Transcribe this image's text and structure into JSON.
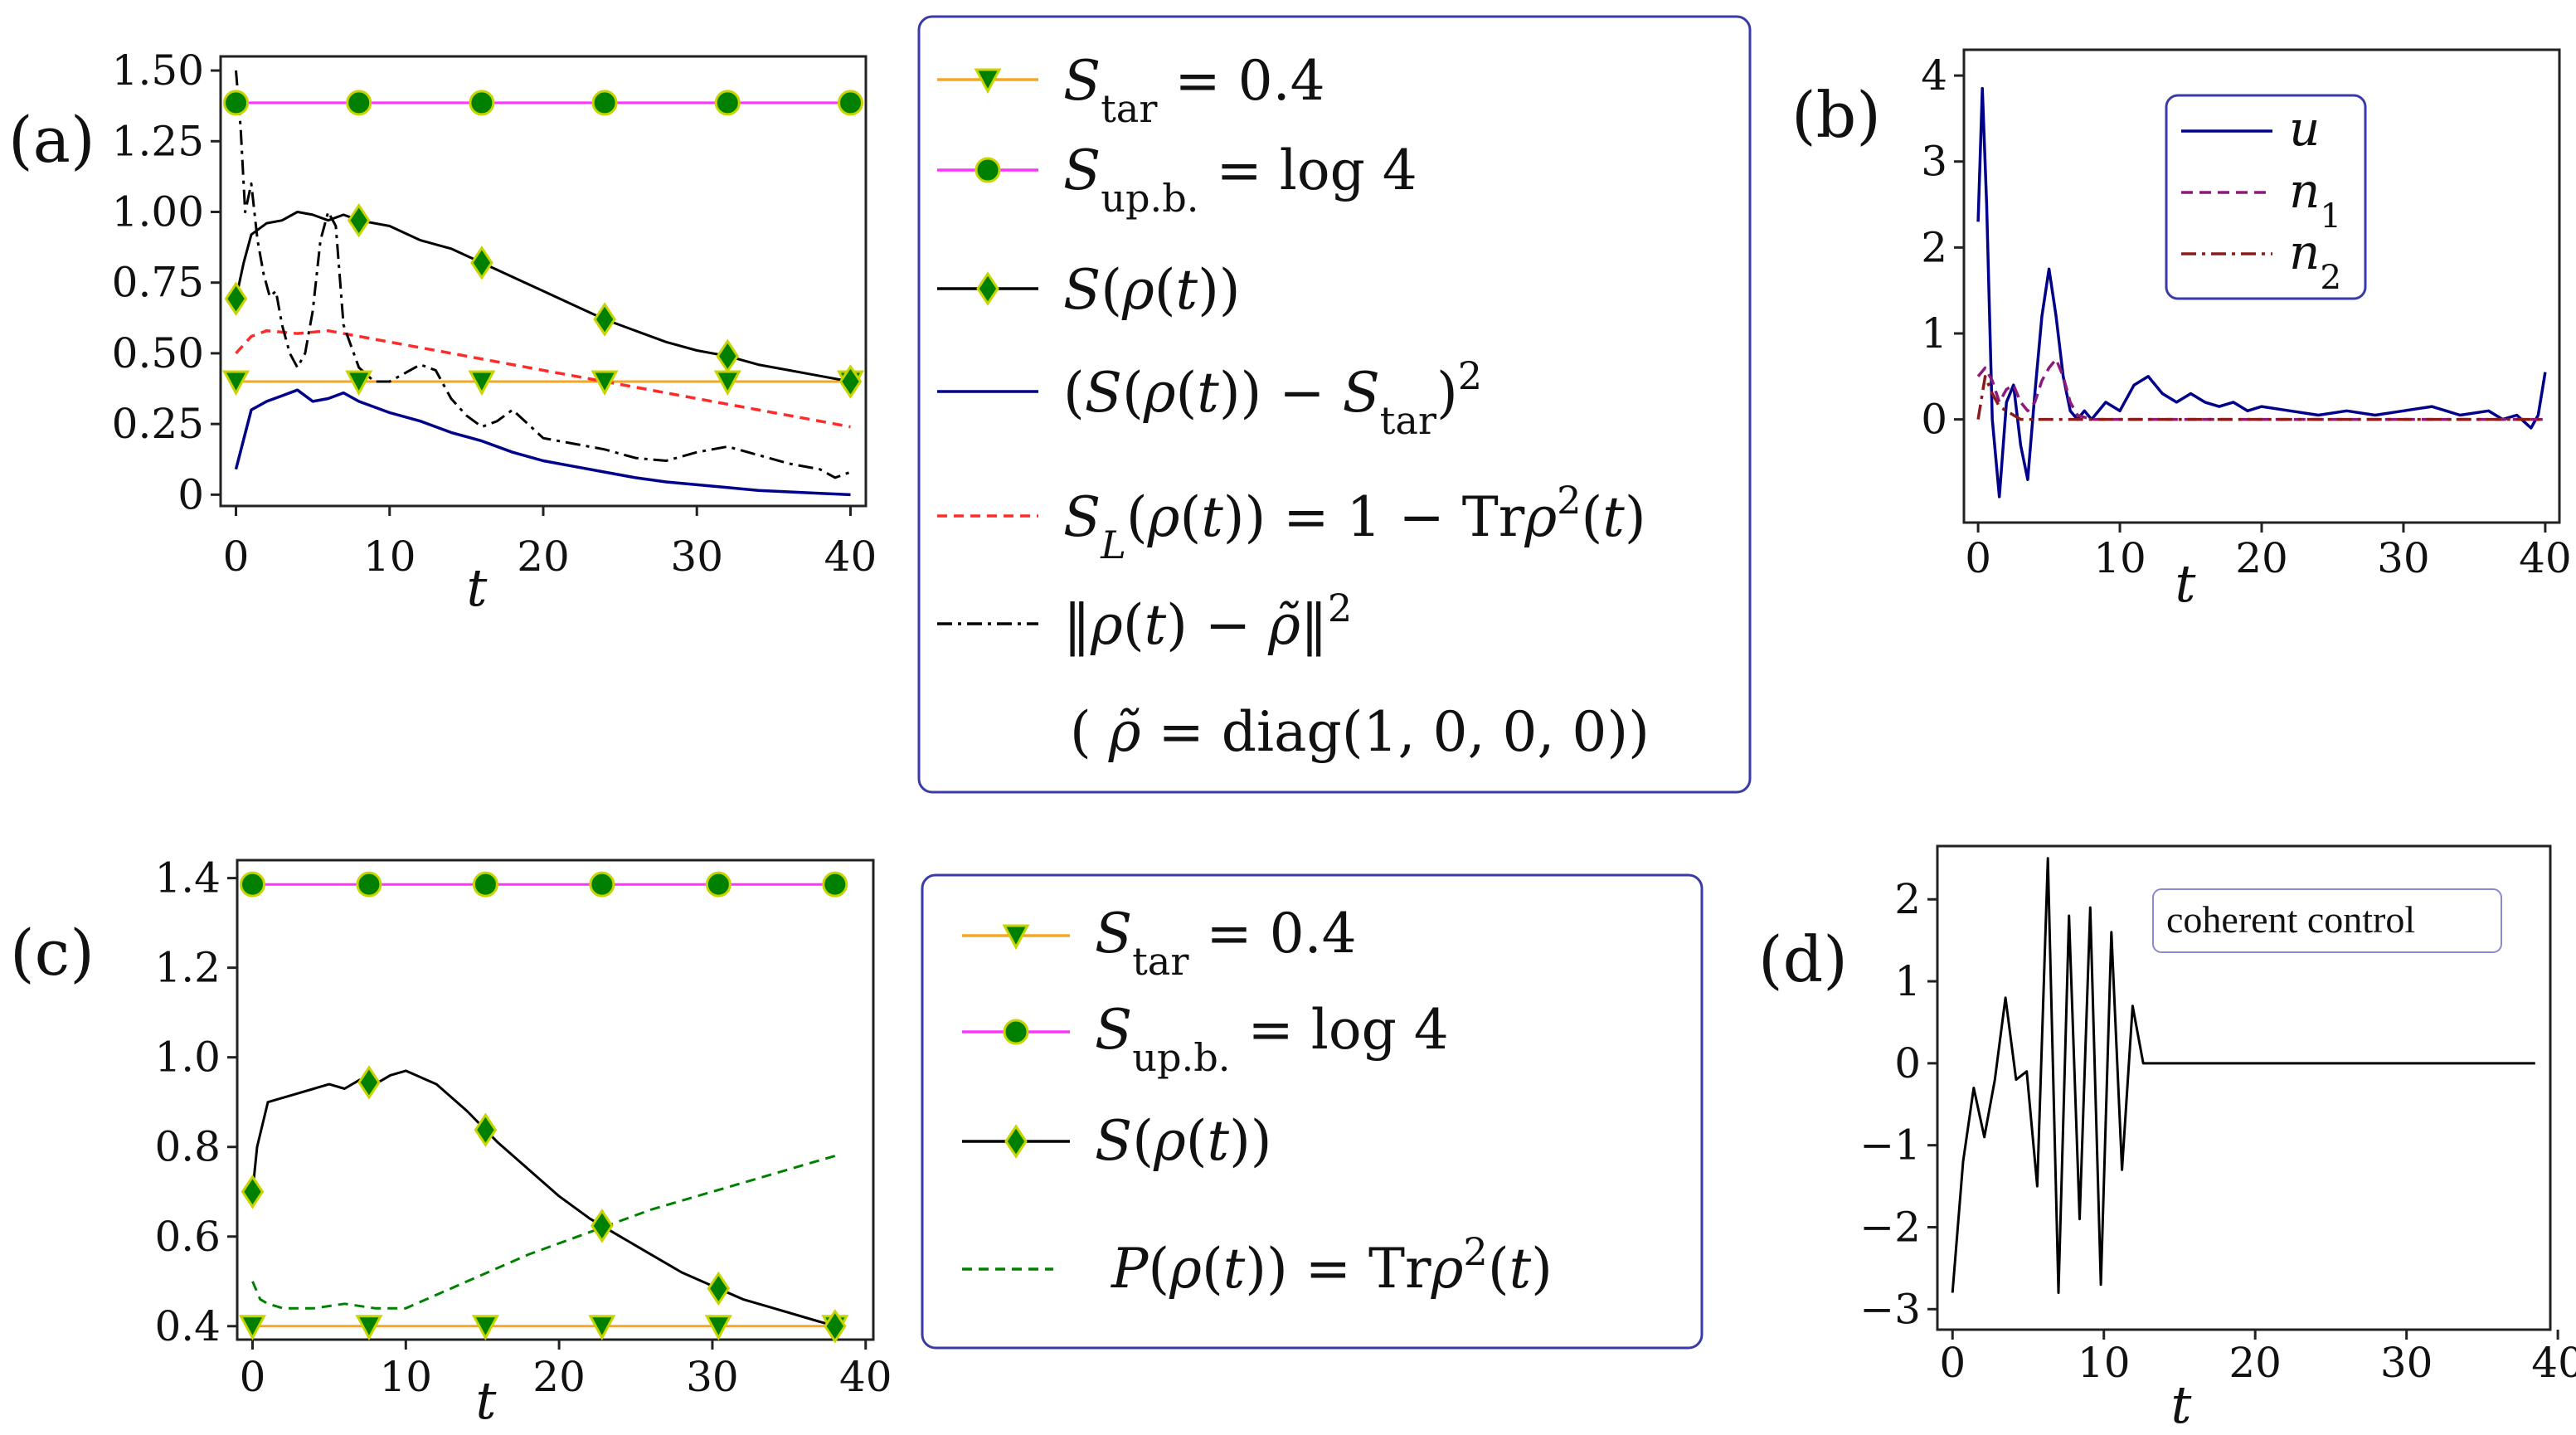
{
  "chart_data": [
    {
      "type": "line",
      "panel_label": "(a)",
      "xlabel": "t",
      "xlim": [
        -1,
        41
      ],
      "ylim": [
        -0.04,
        1.55
      ],
      "x_ticks": [
        "0",
        "10",
        "20",
        "30",
        "40"
      ],
      "y_ticks": [
        "0",
        "0.25",
        "0.50",
        "0.75",
        "1.00",
        "1.25",
        "1.50"
      ],
      "colors": {
        "star": "#f5a623",
        "upb": "#ff33ff",
        "S": "#000000",
        "sq": "#00008b",
        "SL": "#ff2a2a",
        "dist": "#000000",
        "marker": "#008000",
        "marker_edge": "#c8d400"
      },
      "legend": {
        "entries": [
          "S_tar = 0.4",
          "S_up.b. = log 4",
          "S(ρ(t))",
          "(S(ρ(t)) − S_tar)²",
          "S_L(ρ(t)) = 1 − Trρ²(t)",
          "‖ρ(t) − ρ̃‖²",
          "( ρ̃ = diag(1, 0, 0, 0))"
        ]
      },
      "series": [
        {
          "key": "star",
          "x": [
            0,
            40
          ],
          "values": [
            0.4,
            0.4
          ],
          "markers_x": [
            0,
            8,
            16,
            24,
            32,
            40
          ],
          "marker": "triangle-down"
        },
        {
          "key": "upb",
          "x": [
            0,
            40
          ],
          "values": [
            1.386,
            1.386
          ],
          "markers_x": [
            0,
            8,
            16,
            24,
            32,
            40
          ],
          "marker": "circle"
        },
        {
          "key": "S",
          "x": [
            0,
            0.5,
            1,
            2,
            3,
            4,
            5,
            6,
            7,
            8,
            10,
            12,
            14,
            16,
            18,
            20,
            22,
            24,
            26,
            28,
            30,
            32,
            34,
            36,
            38,
            40
          ],
          "values": [
            0.693,
            0.82,
            0.92,
            0.96,
            0.97,
            1.0,
            0.99,
            0.97,
            0.99,
            0.97,
            0.95,
            0.9,
            0.87,
            0.82,
            0.77,
            0.72,
            0.67,
            0.62,
            0.58,
            0.54,
            0.51,
            0.49,
            0.46,
            0.44,
            0.42,
            0.4
          ],
          "markers_x": [
            0,
            8,
            16,
            24,
            32,
            40
          ],
          "marker": "diamond"
        },
        {
          "key": "sq",
          "x": [
            0,
            1,
            2,
            3,
            4,
            5,
            6,
            7,
            8,
            10,
            12,
            14,
            16,
            18,
            20,
            22,
            24,
            26,
            28,
            30,
            32,
            34,
            36,
            38,
            40
          ],
          "values": [
            0.09,
            0.3,
            0.33,
            0.35,
            0.37,
            0.33,
            0.34,
            0.36,
            0.33,
            0.29,
            0.26,
            0.22,
            0.19,
            0.15,
            0.12,
            0.1,
            0.08,
            0.06,
            0.045,
            0.035,
            0.025,
            0.015,
            0.01,
            0.005,
            0.0
          ]
        },
        {
          "key": "SL",
          "x": [
            0,
            1,
            2,
            4,
            6,
            8,
            10,
            14,
            18,
            22,
            26,
            30,
            34,
            38,
            40
          ],
          "values": [
            0.5,
            0.56,
            0.58,
            0.57,
            0.58,
            0.56,
            0.54,
            0.5,
            0.46,
            0.42,
            0.38,
            0.34,
            0.3,
            0.26,
            0.24
          ]
        },
        {
          "key": "dist",
          "x": [
            0,
            0.3,
            0.6,
            1,
            1.4,
            1.8,
            2.2,
            2.6,
            3,
            3.5,
            4,
            4.5,
            5,
            5.5,
            6,
            6.5,
            7,
            8,
            9,
            10,
            12,
            13,
            14,
            15,
            16,
            17,
            18,
            19,
            20,
            22,
            24,
            26,
            28,
            30,
            32,
            34,
            36,
            38,
            39,
            40
          ],
          "values": [
            1.5,
            1.3,
            1.0,
            1.1,
            0.9,
            0.78,
            0.7,
            0.72,
            0.6,
            0.5,
            0.45,
            0.5,
            0.65,
            0.9,
            1.0,
            0.95,
            0.6,
            0.45,
            0.4,
            0.4,
            0.46,
            0.44,
            0.34,
            0.28,
            0.24,
            0.26,
            0.3,
            0.25,
            0.2,
            0.18,
            0.16,
            0.13,
            0.12,
            0.15,
            0.17,
            0.14,
            0.11,
            0.09,
            0.06,
            0.08
          ]
        }
      ]
    },
    {
      "type": "line",
      "panel_label": "(b)",
      "xlabel": "t",
      "xlim": [
        -1,
        41
      ],
      "ylim": [
        -1.2,
        4.3
      ],
      "x_ticks": [
        "0",
        "10",
        "20",
        "30",
        "40"
      ],
      "y_ticks": [
        "0",
        "1",
        "2",
        "3",
        "4"
      ],
      "colors": {
        "u": "#00008b",
        "n1": "#8b1a7a",
        "n2": "#8b1a1a"
      },
      "legend": {
        "entries": [
          "u",
          "n₁",
          "n₂"
        ]
      },
      "series": [
        {
          "key": "u",
          "x": [
            0,
            0.3,
            0.6,
            1,
            1.5,
            2,
            2.5,
            3,
            3.5,
            4,
            4.5,
            5,
            5.5,
            6,
            6.5,
            7,
            7.5,
            8,
            9,
            10,
            11,
            12,
            13,
            14,
            15,
            16,
            17,
            18,
            19,
            20,
            22,
            24,
            26,
            28,
            30,
            32,
            34,
            36,
            37,
            38,
            39,
            39.5,
            40
          ],
          "values": [
            2.3,
            3.85,
            2.5,
            0.0,
            -0.9,
            0.2,
            0.4,
            -0.3,
            -0.7,
            0.3,
            1.2,
            1.75,
            1.2,
            0.5,
            0.1,
            0.0,
            0.1,
            0.0,
            0.2,
            0.1,
            0.4,
            0.5,
            0.3,
            0.2,
            0.3,
            0.2,
            0.15,
            0.2,
            0.1,
            0.15,
            0.1,
            0.05,
            0.1,
            0.05,
            0.1,
            0.15,
            0.05,
            0.1,
            0.0,
            0.05,
            -0.1,
            0.05,
            0.55
          ]
        },
        {
          "key": "n1",
          "x": [
            0,
            0.5,
            1,
            1.5,
            2,
            2.5,
            3,
            3.5,
            4,
            4.5,
            5,
            5.5,
            6,
            6.5,
            7,
            8,
            40
          ],
          "values": [
            0.5,
            0.6,
            0.45,
            0.2,
            0.35,
            0.4,
            0.2,
            0.1,
            0.2,
            0.45,
            0.6,
            0.7,
            0.5,
            0.2,
            0.05,
            0.0,
            0.0
          ]
        },
        {
          "key": "n2",
          "x": [
            0,
            0.5,
            1,
            1.5,
            2,
            2.5,
            3,
            4,
            40
          ],
          "values": [
            0.0,
            0.5,
            0.3,
            0.15,
            0.1,
            0.05,
            0.0,
            0.0,
            0.0
          ]
        }
      ]
    },
    {
      "type": "line",
      "panel_label": "(c)",
      "xlabel": "t",
      "xlim": [
        -1,
        40.5
      ],
      "ylim": [
        0.37,
        1.44
      ],
      "x_ticks": [
        "0",
        "10",
        "20",
        "30",
        "40"
      ],
      "y_ticks": [
        "0.4",
        "0.6",
        "0.8",
        "1.0",
        "1.2",
        "1.4"
      ],
      "colors": {
        "star": "#f5a623",
        "upb": "#ff33ff",
        "S": "#000000",
        "P": "#008000",
        "marker": "#008000",
        "marker_edge": "#c8d400"
      },
      "legend": {
        "entries": [
          "S_tar = 0.4",
          "S_up.b. = log 4",
          "S(ρ(t))",
          "P(ρ(t)) = Trρ²(t)"
        ]
      },
      "series": [
        {
          "key": "star",
          "x": [
            0,
            38
          ],
          "values": [
            0.4,
            0.4
          ],
          "markers_x": [
            0,
            7.6,
            15.2,
            22.8,
            30.4,
            38
          ],
          "marker": "triangle-down"
        },
        {
          "key": "upb",
          "x": [
            0,
            38
          ],
          "values": [
            1.386,
            1.386
          ],
          "markers_x": [
            0,
            7.6,
            15.2,
            22.8,
            30.4,
            38
          ],
          "marker": "circle"
        },
        {
          "key": "S",
          "x": [
            0,
            0.3,
            1,
            2,
            3,
            4,
            5,
            6,
            7,
            8,
            9,
            10,
            12,
            14,
            16,
            18,
            20,
            22,
            24,
            26,
            28,
            30,
            32,
            34,
            36,
            38
          ],
          "values": [
            0.7,
            0.8,
            0.9,
            0.91,
            0.92,
            0.93,
            0.94,
            0.93,
            0.95,
            0.94,
            0.96,
            0.97,
            0.94,
            0.88,
            0.81,
            0.75,
            0.69,
            0.64,
            0.6,
            0.56,
            0.52,
            0.49,
            0.46,
            0.44,
            0.42,
            0.4
          ],
          "markers_x": [
            0,
            7.6,
            15.2,
            22.8,
            30.4,
            38
          ],
          "marker": "diamond"
        },
        {
          "key": "P",
          "x": [
            0,
            0.5,
            1,
            2,
            4,
            6,
            8,
            10,
            14,
            18,
            22,
            26,
            30,
            34,
            38
          ],
          "values": [
            0.5,
            0.46,
            0.45,
            0.44,
            0.44,
            0.45,
            0.44,
            0.44,
            0.5,
            0.56,
            0.61,
            0.66,
            0.7,
            0.74,
            0.78
          ]
        }
      ]
    },
    {
      "type": "line",
      "panel_label": "(d)",
      "xlabel": "t",
      "xlim": [
        -1,
        39.5
      ],
      "ylim": [
        -3.25,
        2.65
      ],
      "x_ticks": [
        "0",
        "10",
        "20",
        "30",
        "40"
      ],
      "y_ticks": [
        "−3",
        "−2",
        "−1",
        "0",
        "1",
        "2"
      ],
      "colors": {
        "c": "#000000"
      },
      "legend": {
        "entries": [
          "coherent control"
        ]
      },
      "series": [
        {
          "key": "c",
          "x": [
            0,
            0.7,
            1.4,
            2.1,
            2.8,
            3.5,
            4.2,
            4.9,
            5.6,
            6.3,
            7.0,
            7.7,
            8.4,
            9.1,
            9.8,
            10.5,
            11.2,
            11.9,
            12.6,
            38.5
          ],
          "values": [
            -2.8,
            -1.2,
            -0.3,
            -0.9,
            -0.2,
            0.8,
            -0.2,
            -0.1,
            -1.5,
            2.5,
            -2.8,
            1.8,
            -1.9,
            1.9,
            -2.7,
            1.6,
            -1.3,
            0.7,
            0.0,
            0.0
          ]
        }
      ]
    }
  ]
}
